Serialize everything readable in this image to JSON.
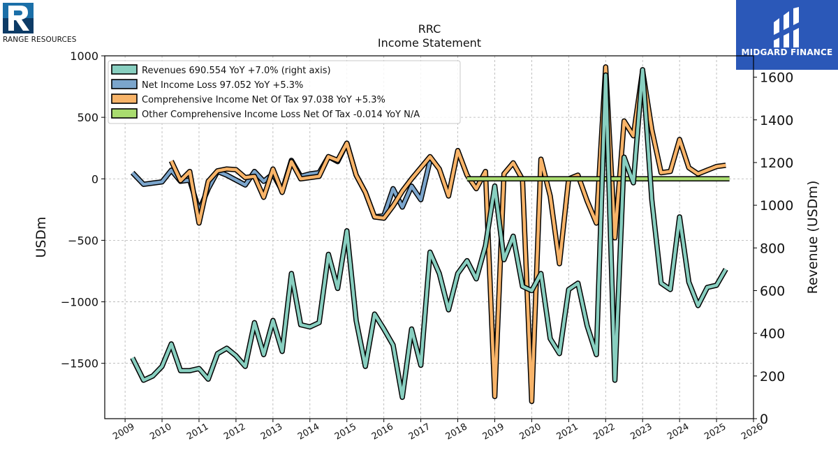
{
  "brand_left": {
    "name": "RANGE RESOURCES"
  },
  "brand_right": {
    "name": "MIDGARD FINANCE"
  },
  "chart_data": {
    "type": "line",
    "title": "RRC",
    "subtitle": "Income Statement",
    "ylabel": "USDm",
    "ylabel_right": "Revenue (USDm)",
    "ylim": [
      -1950,
      1000
    ],
    "ylim_right": [
      0,
      1700
    ],
    "yticks": [
      1000,
      500,
      0,
      -500,
      -1000,
      -1500
    ],
    "yticks_right": [
      0,
      200,
      400,
      600,
      800,
      1000,
      1200,
      1400,
      1600
    ],
    "xlim": [
      2008.45,
      2026.0
    ],
    "xticks": [
      2009,
      2010,
      2011,
      2012,
      2013,
      2014,
      2015,
      2016,
      2017,
      2018,
      2019,
      2020,
      2021,
      2022,
      2023,
      2024,
      2025,
      2026
    ],
    "grid": true,
    "legend_position": "top-left",
    "series": [
      {
        "name": "Revenues",
        "legend": "Revenues  690.554 YoY +7.0% (right axis)",
        "color": "#88cfc0",
        "axis": "right",
        "x": [
          2009.2,
          2009.5,
          2009.75,
          2010.0,
          2010.25,
          2010.5,
          2010.75,
          2011.0,
          2011.25,
          2011.5,
          2011.75,
          2012.0,
          2012.25,
          2012.5,
          2012.75,
          2013.0,
          2013.25,
          2013.5,
          2013.75,
          2014.0,
          2014.25,
          2014.5,
          2014.75,
          2015.0,
          2015.25,
          2015.5,
          2015.75,
          2016.0,
          2016.25,
          2016.5,
          2016.75,
          2017.0,
          2017.25,
          2017.5,
          2017.75,
          2018.0,
          2018.25,
          2018.5,
          2018.75,
          2019.0,
          2019.25,
          2019.5,
          2019.75,
          2020.0,
          2020.25,
          2020.5,
          2020.75,
          2021.0,
          2021.25,
          2021.5,
          2021.75,
          2022.0,
          2022.25,
          2022.5,
          2022.75,
          2023.0,
          2023.25,
          2023.5,
          2023.75,
          2024.0,
          2024.25,
          2024.5,
          2024.75,
          2025.0,
          2025.25
        ],
        "values": [
          285,
          180,
          200,
          245,
          350,
          225,
          225,
          235,
          185,
          305,
          330,
          295,
          245,
          450,
          300,
          460,
          315,
          680,
          440,
          430,
          450,
          770,
          610,
          880,
          460,
          245,
          490,
          420,
          345,
          100,
          420,
          250,
          780,
          680,
          510,
          680,
          740,
          655,
          810,
          1090,
          745,
          855,
          620,
          600,
          680,
          375,
          305,
          605,
          635,
          435,
          300,
          1610,
          180,
          1225,
          1105,
          1635,
          1025,
          635,
          605,
          945,
          640,
          530,
          615,
          625,
          700
        ]
      },
      {
        "name": "Net Income Loss",
        "legend": "Net Income Loss  97.052 YoY +5.3%",
        "color": "#7ba5cc",
        "axis": "left",
        "x": [
          2009.2,
          2009.5,
          2009.75,
          2010.0,
          2010.25,
          2010.5,
          2010.75,
          2011.0,
          2011.25,
          2011.5,
          2011.75,
          2012.0,
          2012.25,
          2012.5,
          2012.75,
          2013.0,
          2013.25,
          2013.5,
          2013.75,
          2014.0,
          2014.25,
          2014.5,
          2014.75,
          2015.0,
          2015.25,
          2015.5,
          2015.75,
          2016.0,
          2016.25,
          2016.5,
          2016.75,
          2017.0,
          2017.25
        ],
        "values": [
          50,
          -45,
          -35,
          -25,
          70,
          -20,
          -10,
          -260,
          -80,
          60,
          30,
          -10,
          -50,
          60,
          -20,
          40,
          -100,
          150,
          20,
          40,
          50,
          180,
          140,
          290,
          30,
          -110,
          -310,
          -300,
          -80,
          -230,
          -60,
          -170,
          150
        ]
      },
      {
        "name": "Comprehensive Income Net Of Tax",
        "legend": "Comprehensive Income Net Of Tax  97.038 YoY +5.3%",
        "color": "#f8b469",
        "axis": "left",
        "x": [
          2010.25,
          2010.5,
          2010.75,
          2011.0,
          2011.25,
          2011.5,
          2011.75,
          2012.0,
          2012.25,
          2012.5,
          2012.75,
          2013.0,
          2013.25,
          2013.5,
          2013.75,
          2014.0,
          2014.25,
          2014.5,
          2014.75,
          2015.0,
          2015.25,
          2015.5,
          2015.75,
          2016.0,
          2016.25,
          2016.5,
          2016.75,
          2017.0,
          2017.25,
          2017.5,
          2017.75,
          2018.0,
          2018.25,
          2018.5,
          2018.75,
          2019.0,
          2019.25,
          2019.5,
          2019.75,
          2020.0,
          2020.25,
          2020.5,
          2020.75,
          2021.0,
          2021.25,
          2021.5,
          2021.75,
          2022.0,
          2022.25,
          2022.5,
          2022.75,
          2023.0,
          2023.25,
          2023.5,
          2023.75,
          2024.0,
          2024.25,
          2024.5,
          2024.75,
          2025.0,
          2025.25
        ],
        "values": [
          145,
          -15,
          60,
          -360,
          -20,
          65,
          80,
          75,
          10,
          20,
          -150,
          80,
          -110,
          140,
          0,
          10,
          20,
          180,
          150,
          290,
          30,
          -110,
          -310,
          -320,
          -220,
          -100,
          0,
          90,
          180,
          80,
          -140,
          230,
          30,
          -80,
          60,
          -1770,
          40,
          130,
          -5,
          -1810,
          160,
          -140,
          -690,
          0,
          30,
          -180,
          -360,
          910,
          -480,
          470,
          350,
          880,
          400,
          50,
          60,
          320,
          90,
          40,
          70,
          100,
          110
        ]
      },
      {
        "name": "Other Comprehensive Income Loss Net Of Tax",
        "legend": "Other Comprehensive Income Loss Net Of Tax  -0.014 YoY N/A",
        "color": "#a9dc6f",
        "axis": "left",
        "x": [
          2018.25,
          2025.35
        ],
        "values": [
          0,
          0
        ]
      }
    ]
  }
}
